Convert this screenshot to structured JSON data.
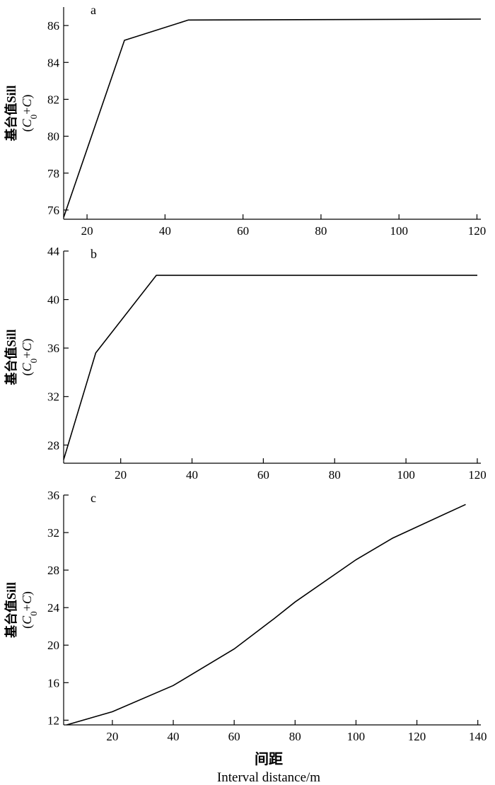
{
  "chart_data": [
    {
      "type": "line",
      "panel_label": "a",
      "ylabel_cn": "基台值Sill",
      "ylabel_formula": "(C0+C)",
      "xlim": [
        14,
        121
      ],
      "ylim": [
        75.5,
        87
      ],
      "xticks": [
        20,
        40,
        60,
        80,
        100,
        120
      ],
      "yticks": [
        76,
        78,
        80,
        82,
        84,
        86
      ],
      "x": [
        14,
        29.6,
        46,
        121
      ],
      "y": [
        75.6,
        85.2,
        86.3,
        86.35
      ]
    },
    {
      "type": "line",
      "panel_label": "b",
      "ylabel_cn": "基台值Sill",
      "ylabel_formula": "(C0+C)",
      "xlim": [
        4,
        121
      ],
      "ylim": [
        26.5,
        44
      ],
      "xticks": [
        20,
        40,
        60,
        80,
        100,
        120
      ],
      "yticks": [
        28,
        32,
        36,
        40,
        44
      ],
      "x": [
        4,
        13,
        30,
        120
      ],
      "y": [
        26.8,
        35.6,
        42,
        42
      ]
    },
    {
      "type": "line",
      "panel_label": "c",
      "ylabel_cn": "基台值Sill",
      "ylabel_formula": "(C0+C)",
      "xlabel_cn": "间距",
      "xlabel_en": "Interval distance/m",
      "xlim": [
        4,
        141
      ],
      "ylim": [
        11.5,
        36
      ],
      "xticks": [
        20,
        40,
        60,
        80,
        100,
        120,
        140
      ],
      "yticks": [
        12,
        16,
        20,
        24,
        28,
        32,
        36
      ],
      "x": [
        5,
        20,
        40,
        60,
        73,
        80,
        100,
        112,
        136
      ],
      "y": [
        11.5,
        12.9,
        15.7,
        19.6,
        22.8,
        24.6,
        29.1,
        31.4,
        35
      ]
    }
  ]
}
